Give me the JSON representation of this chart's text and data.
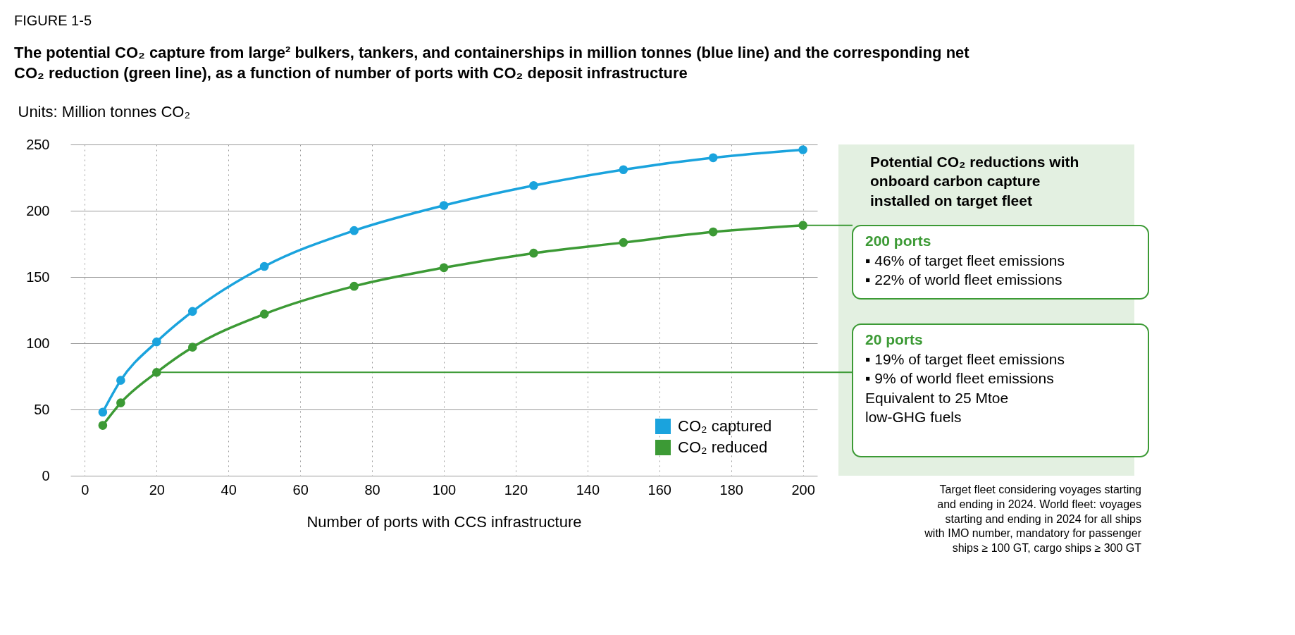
{
  "chart_data": {
    "type": "line",
    "title": "The potential CO₂ capture from large² bulkers, tankers, and containerships in million tonnes (blue line) and the corresponding net CO₂ reduction (green line), as a function of number of ports with CO₂ deposit infrastructure",
    "subtitle": "FIGURE 1-5",
    "ylabel": "Units: Million tonnes CO₂",
    "xlabel": "Number of ports with CCS infrastructure",
    "x": [
      5,
      10,
      20,
      30,
      50,
      75,
      100,
      125,
      150,
      175,
      200
    ],
    "series": [
      {
        "name": "CO₂ captured",
        "color": "#1aa3dd",
        "values": [
          48,
          72,
          101,
          124,
          158,
          185,
          204,
          219,
          231,
          240,
          246
        ]
      },
      {
        "name": "CO₂ reduced",
        "color": "#3c9a35",
        "values": [
          38,
          55,
          78,
          97,
          122,
          143,
          157,
          168,
          176,
          184,
          189
        ]
      }
    ],
    "xlim": [
      -4,
      204
    ],
    "xticks": [
      0,
      20,
      40,
      60,
      80,
      100,
      120,
      140,
      160,
      180,
      200
    ],
    "ylim": [
      0,
      250
    ],
    "yticks": [
      0,
      50,
      100,
      150,
      200,
      250
    ],
    "grid": true,
    "legend": "bottom right",
    "marker": "circle",
    "line_style": "solid",
    "annotations": [
      "Potential CO₂ reductions with onboard carbon capture installed on target fleet",
      {
        "text": "200 ports\n▪ 46% of target fleet emissions\n▪ 22% of world fleet emissions",
        "x": 200,
        "y": 189
      },
      {
        "text": "20 ports\n▪ 19% of target fleet emissions\n▪ 9% of world fleet emissions\n\nEquivalent to 25 Mtoe\nlow-GHG fuels",
        "x": 20,
        "y": 78
      },
      "Target fleet considering voyages starting and ending in 2024. World fleet: voyages starting and ending in 2024 for all ships with IMO number, mandatory for passenger ships ≥ 100 GT, cargo ships ≥ 300 GT"
    ]
  }
}
